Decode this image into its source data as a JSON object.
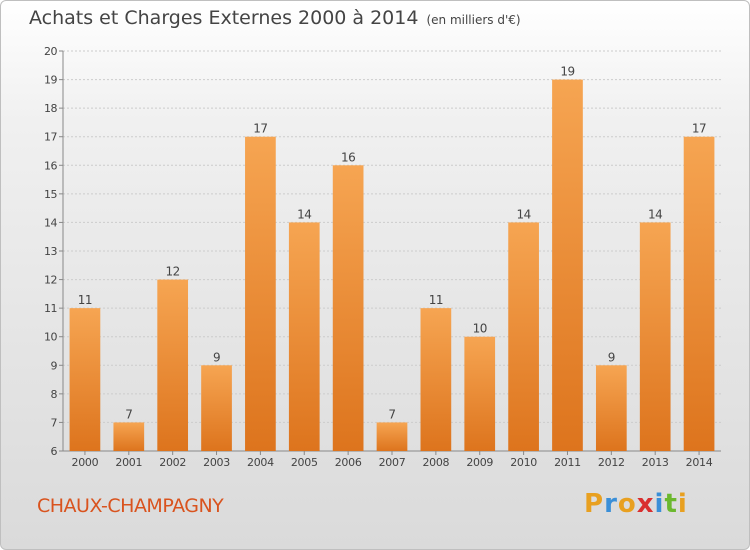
{
  "header": {
    "title": "Achats et Charges Externes 2000 à 2014",
    "subtitle": "(en milliers d'€)"
  },
  "footer": {
    "commune": "CHAUX-CHAMPAGNY",
    "logo": [
      "P",
      "r",
      "o",
      "x",
      "i",
      "t",
      "i"
    ],
    "logo_colors": [
      "#e8a020",
      "#3a8fd8",
      "#e8a020",
      "#d92f2f",
      "#3a8fd8",
      "#6bb82e",
      "#e8a020"
    ]
  },
  "colors": {
    "bar_top": "#f6a552",
    "bar_bottom": "#dd741d",
    "grid": "#cccccc",
    "axis": "#888888",
    "text": "#444444"
  },
  "chart_data": {
    "type": "bar",
    "title": "Achats et Charges Externes 2000 à 2014",
    "subtitle": "(en milliers d'€)",
    "categories": [
      "2000",
      "2001",
      "2002",
      "2003",
      "2004",
      "2005",
      "2006",
      "2007",
      "2008",
      "2009",
      "2010",
      "2011",
      "2012",
      "2013",
      "2014"
    ],
    "values": [
      11,
      7,
      12,
      9,
      17,
      14,
      16,
      7,
      11,
      10,
      14,
      19,
      9,
      14,
      17
    ],
    "ylim": [
      6,
      20
    ],
    "yticks": [
      6,
      7,
      8,
      9,
      10,
      11,
      12,
      13,
      14,
      15,
      16,
      17,
      18,
      19,
      20
    ],
    "grid": true,
    "data_labels": true
  }
}
